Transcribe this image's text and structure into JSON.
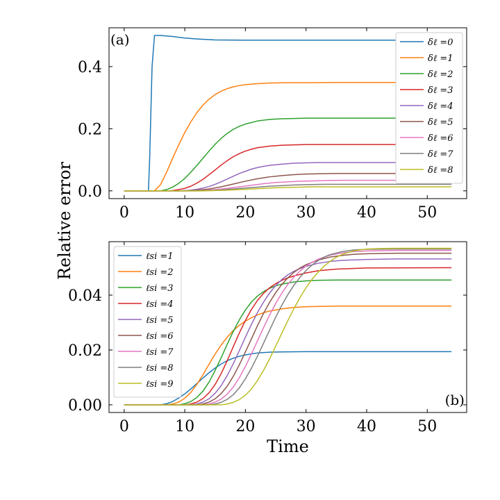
{
  "figure": {
    "shared_ylabel": "Relative error"
  },
  "chart_data": [
    {
      "type": "line",
      "panel_label": "(a)",
      "xlabel": "",
      "xlim": [
        -2.5,
        56.5
      ],
      "ylim": [
        -0.025,
        0.525
      ],
      "xticks": [
        0,
        10,
        20,
        30,
        40,
        50
      ],
      "xtick_labels": [
        "0",
        "10",
        "20",
        "30",
        "40",
        "50"
      ],
      "yticks": [
        0.0,
        0.2,
        0.4
      ],
      "ytick_labels": [
        "0.0",
        "0.2",
        "0.4"
      ],
      "legend_position": "top-right",
      "series": [
        {
          "name": "δℓ =0",
          "color": "#1f77b4",
          "x": [
            0,
            4,
            4.2,
            4.6,
            5,
            6,
            8,
            10,
            12,
            15,
            20,
            25,
            30,
            40,
            54
          ],
          "y": [
            0,
            0,
            0.1,
            0.4,
            0.5,
            0.5,
            0.497,
            0.492,
            0.489,
            0.486,
            0.485,
            0.485,
            0.485,
            0.485,
            0.485
          ]
        },
        {
          "name": "δℓ =1",
          "color": "#ff7f0e",
          "x": [
            0,
            5,
            6,
            7,
            8,
            9,
            10,
            11,
            12,
            13,
            14,
            15,
            16,
            17,
            18,
            19,
            20,
            22,
            24,
            26,
            28,
            30,
            35,
            40,
            54
          ],
          "y": [
            0,
            0,
            0.02,
            0.06,
            0.105,
            0.148,
            0.188,
            0.222,
            0.252,
            0.276,
            0.295,
            0.31,
            0.321,
            0.329,
            0.335,
            0.339,
            0.342,
            0.345,
            0.347,
            0.348,
            0.348,
            0.348,
            0.349,
            0.349,
            0.349
          ]
        },
        {
          "name": "δℓ =2",
          "color": "#2ca02c",
          "x": [
            0,
            6,
            7,
            8,
            9,
            10,
            11,
            12,
            13,
            14,
            15,
            16,
            17,
            18,
            19,
            20,
            22,
            24,
            26,
            28,
            30,
            35,
            40,
            54
          ],
          "y": [
            0,
            0,
            0.004,
            0.012,
            0.024,
            0.04,
            0.06,
            0.082,
            0.105,
            0.128,
            0.15,
            0.169,
            0.185,
            0.198,
            0.208,
            0.215,
            0.225,
            0.23,
            0.232,
            0.233,
            0.234,
            0.234,
            0.234,
            0.234
          ]
        },
        {
          "name": "δℓ =3",
          "color": "#d62728",
          "x": [
            0,
            7,
            8,
            9,
            10,
            11,
            12,
            13,
            14,
            15,
            16,
            17,
            18,
            19,
            20,
            21,
            22,
            24,
            26,
            28,
            30,
            35,
            40,
            54
          ],
          "y": [
            0,
            0,
            0.001,
            0.004,
            0.008,
            0.015,
            0.025,
            0.037,
            0.052,
            0.067,
            0.083,
            0.097,
            0.11,
            0.12,
            0.128,
            0.134,
            0.139,
            0.144,
            0.147,
            0.148,
            0.149,
            0.149,
            0.149,
            0.149
          ]
        },
        {
          "name": "δℓ =4",
          "color": "#9467bd",
          "x": [
            0,
            9,
            10,
            11,
            12,
            13,
            14,
            15,
            16,
            17,
            18,
            19,
            20,
            21,
            22,
            23,
            24,
            26,
            28,
            30,
            32,
            35,
            40,
            54
          ],
          "y": [
            0,
            0,
            0.001,
            0.002,
            0.005,
            0.009,
            0.014,
            0.021,
            0.029,
            0.038,
            0.047,
            0.056,
            0.063,
            0.07,
            0.075,
            0.079,
            0.082,
            0.086,
            0.089,
            0.09,
            0.091,
            0.091,
            0.091,
            0.091
          ]
        },
        {
          "name": "δℓ =5",
          "color": "#8c564b",
          "x": [
            0,
            10,
            12,
            14,
            16,
            18,
            20,
            22,
            24,
            26,
            28,
            30,
            32,
            35,
            40,
            54
          ],
          "y": [
            0,
            0,
            0.002,
            0.006,
            0.013,
            0.022,
            0.031,
            0.039,
            0.045,
            0.049,
            0.052,
            0.054,
            0.055,
            0.056,
            0.056,
            0.056
          ]
        },
        {
          "name": "δℓ =6",
          "color": "#e377c2",
          "x": [
            0,
            11,
            13,
            15,
            17,
            19,
            21,
            23,
            25,
            27,
            29,
            31,
            33,
            36,
            40,
            54
          ],
          "y": [
            0,
            0,
            0.001,
            0.004,
            0.008,
            0.013,
            0.018,
            0.023,
            0.027,
            0.029,
            0.031,
            0.032,
            0.033,
            0.034,
            0.034,
            0.034
          ]
        },
        {
          "name": "δℓ =7",
          "color": "#7f7f7f",
          "x": [
            0,
            12,
            14,
            16,
            18,
            20,
            22,
            24,
            26,
            28,
            30,
            33,
            36,
            40,
            54
          ],
          "y": [
            0,
            0,
            0.001,
            0.003,
            0.006,
            0.009,
            0.012,
            0.015,
            0.017,
            0.019,
            0.02,
            0.021,
            0.021,
            0.021,
            0.021
          ]
        },
        {
          "name": "δℓ =8",
          "color": "#bcbd22",
          "x": [
            0,
            13,
            15,
            17,
            19,
            21,
            23,
            25,
            27,
            29,
            31,
            34,
            37,
            40,
            54
          ],
          "y": [
            0,
            0,
            0.001,
            0.002,
            0.004,
            0.006,
            0.008,
            0.01,
            0.011,
            0.012,
            0.013,
            0.013,
            0.013,
            0.013,
            0.013
          ]
        }
      ]
    },
    {
      "type": "line",
      "panel_label": "(b)",
      "xlabel": "Time",
      "xlim": [
        -2.5,
        56.5
      ],
      "ylim": [
        -0.0028,
        0.0595
      ],
      "xticks": [
        0,
        10,
        20,
        30,
        40,
        50
      ],
      "xtick_labels": [
        "0",
        "10",
        "20",
        "30",
        "40",
        "50"
      ],
      "yticks": [
        0.0,
        0.02,
        0.04
      ],
      "ytick_labels": [
        "0.00",
        "0.02",
        "0.04"
      ],
      "legend_position": "top-left",
      "series": [
        {
          "name": "ℓsi =1",
          "color": "#1f77b4",
          "x": [
            0,
            6,
            7,
            8,
            9,
            10,
            11,
            12,
            13,
            14,
            15,
            16,
            17,
            18,
            19,
            20,
            21,
            22,
            24,
            26,
            30,
            40,
            54
          ],
          "y": [
            0,
            0,
            0.0004,
            0.0012,
            0.0025,
            0.004,
            0.0058,
            0.0078,
            0.0098,
            0.0117,
            0.0134,
            0.0149,
            0.0161,
            0.017,
            0.0177,
            0.0182,
            0.0186,
            0.0189,
            0.0192,
            0.0193,
            0.0194,
            0.0194,
            0.0194
          ]
        },
        {
          "name": "ℓsi =2",
          "color": "#ff7f0e",
          "x": [
            0,
            7,
            8,
            9,
            10,
            11,
            12,
            13,
            14,
            15,
            16,
            17,
            18,
            19,
            20,
            21,
            22,
            23,
            24,
            26,
            28,
            30,
            35,
            40,
            54
          ],
          "y": [
            0,
            0,
            0.0003,
            0.001,
            0.0024,
            0.0045,
            0.0075,
            0.011,
            0.0148,
            0.0185,
            0.0218,
            0.0247,
            0.0271,
            0.029,
            0.0305,
            0.0318,
            0.0328,
            0.0336,
            0.0342,
            0.035,
            0.0355,
            0.0358,
            0.036,
            0.036,
            0.036
          ]
        },
        {
          "name": "ℓsi =3",
          "color": "#2ca02c",
          "x": [
            0,
            9,
            10,
            11,
            12,
            13,
            14,
            15,
            16,
            17,
            18,
            19,
            20,
            21,
            22,
            23,
            24,
            25,
            26,
            28,
            30,
            32,
            35,
            40,
            54
          ],
          "y": [
            0,
            0,
            0.0004,
            0.0012,
            0.0027,
            0.005,
            0.0083,
            0.0125,
            0.0172,
            0.0221,
            0.0268,
            0.031,
            0.0346,
            0.0375,
            0.0397,
            0.0413,
            0.0425,
            0.0434,
            0.044,
            0.0448,
            0.0452,
            0.0454,
            0.0455,
            0.0455,
            0.0455
          ]
        },
        {
          "name": "ℓsi =4",
          "color": "#d62728",
          "x": [
            0,
            10,
            11,
            12,
            13,
            14,
            15,
            16,
            17,
            18,
            19,
            20,
            21,
            22,
            23,
            24,
            25,
            26,
            27,
            28,
            30,
            32,
            35,
            40,
            54
          ],
          "y": [
            0,
            0,
            0.0003,
            0.001,
            0.0023,
            0.0044,
            0.0074,
            0.0114,
            0.0161,
            0.0212,
            0.0262,
            0.0308,
            0.0348,
            0.0381,
            0.0407,
            0.0427,
            0.0442,
            0.0454,
            0.0463,
            0.047,
            0.0481,
            0.0489,
            0.0495,
            0.0499,
            0.05
          ]
        },
        {
          "name": "ℓsi =5",
          "color": "#9467bd",
          "x": [
            0,
            11,
            12,
            13,
            14,
            15,
            16,
            17,
            18,
            19,
            20,
            21,
            22,
            23,
            24,
            25,
            26,
            27,
            28,
            29,
            30,
            32,
            34,
            36,
            40,
            45,
            54
          ],
          "y": [
            0,
            0,
            0.0003,
            0.001,
            0.0022,
            0.0042,
            0.007,
            0.0107,
            0.015,
            0.0198,
            0.0247,
            0.0294,
            0.0337,
            0.0375,
            0.0408,
            0.0435,
            0.0457,
            0.0474,
            0.0487,
            0.0497,
            0.0505,
            0.0516,
            0.0523,
            0.0527,
            0.053,
            0.0532,
            0.0532
          ]
        },
        {
          "name": "ℓsi =6",
          "color": "#8c564b",
          "x": [
            0,
            12,
            13,
            14,
            15,
            16,
            17,
            18,
            19,
            20,
            21,
            22,
            23,
            24,
            25,
            26,
            27,
            28,
            29,
            30,
            32,
            34,
            36,
            38,
            40,
            45,
            54
          ],
          "y": [
            0,
            0,
            0.0003,
            0.001,
            0.0022,
            0.0041,
            0.0068,
            0.0104,
            0.0146,
            0.0193,
            0.0241,
            0.0289,
            0.0334,
            0.0374,
            0.0409,
            0.0439,
            0.0463,
            0.0483,
            0.0499,
            0.0511,
            0.0528,
            0.0539,
            0.0545,
            0.0549,
            0.0551,
            0.0553,
            0.0553
          ]
        },
        {
          "name": "ℓsi =7",
          "color": "#e377c2",
          "x": [
            0,
            13,
            14,
            15,
            16,
            17,
            18,
            19,
            20,
            21,
            22,
            23,
            24,
            25,
            26,
            27,
            28,
            29,
            30,
            31,
            32,
            34,
            36,
            38,
            40,
            45,
            54
          ],
          "y": [
            0,
            0,
            0.0003,
            0.001,
            0.0021,
            0.0039,
            0.0065,
            0.0099,
            0.014,
            0.0186,
            0.0234,
            0.0282,
            0.0328,
            0.037,
            0.0407,
            0.0439,
            0.0466,
            0.0488,
            0.0506,
            0.052,
            0.0531,
            0.0546,
            0.0554,
            0.0559,
            0.0561,
            0.0563,
            0.0563
          ]
        },
        {
          "name": "ℓsi =8",
          "color": "#7f7f7f",
          "x": [
            0,
            14,
            15,
            16,
            17,
            18,
            19,
            20,
            21,
            22,
            23,
            24,
            25,
            26,
            27,
            28,
            29,
            30,
            31,
            32,
            33,
            34,
            36,
            38,
            40,
            45,
            54
          ],
          "y": [
            0,
            0,
            0.0003,
            0.0009,
            0.002,
            0.0037,
            0.0062,
            0.0095,
            0.0134,
            0.0178,
            0.0225,
            0.0273,
            0.032,
            0.0363,
            0.0402,
            0.0436,
            0.0465,
            0.049,
            0.051,
            0.0526,
            0.0539,
            0.0548,
            0.0559,
            0.0565,
            0.0567,
            0.0568,
            0.0568
          ]
        },
        {
          "name": "ℓsi =9",
          "color": "#bcbd22",
          "x": [
            0,
            16,
            17,
            18,
            19,
            20,
            21,
            22,
            23,
            24,
            25,
            26,
            27,
            28,
            29,
            30,
            31,
            32,
            33,
            34,
            35,
            36,
            38,
            40,
            42,
            45,
            54
          ],
          "y": [
            0,
            0,
            0.0003,
            0.0009,
            0.0019,
            0.0035,
            0.0058,
            0.0089,
            0.0126,
            0.0168,
            0.0214,
            0.0261,
            0.0307,
            0.0351,
            0.0391,
            0.0427,
            0.0458,
            0.0484,
            0.0506,
            0.0524,
            0.0538,
            0.0549,
            0.0562,
            0.0568,
            0.057,
            0.0571,
            0.0571
          ]
        }
      ]
    }
  ]
}
